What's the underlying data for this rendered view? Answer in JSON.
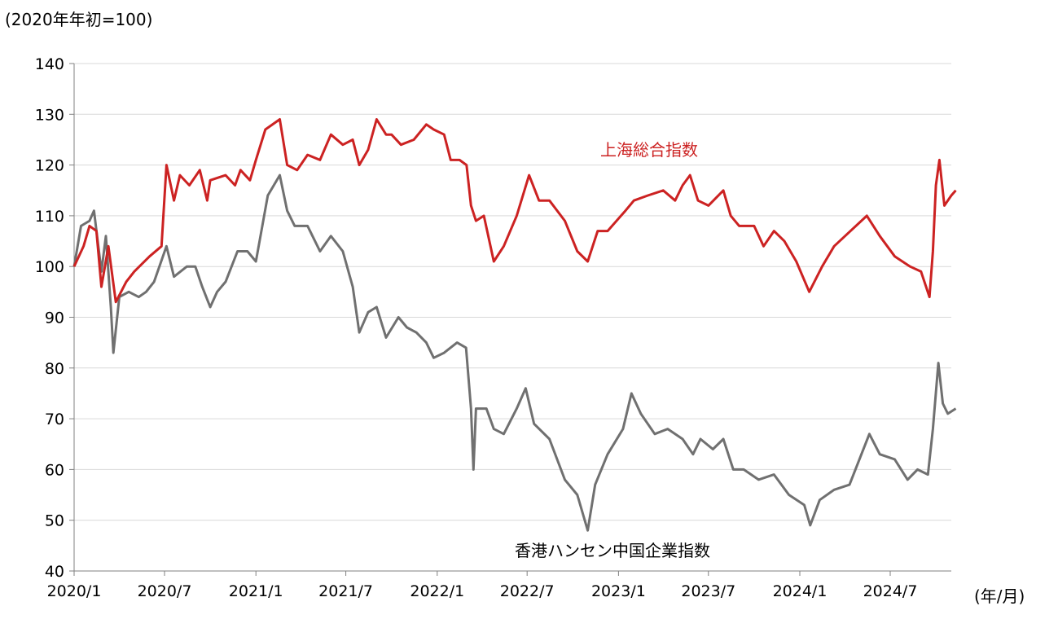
{
  "chart_data": {
    "type": "line",
    "title": "",
    "ylabel": "(2020年年初=100)",
    "xlabel": "(年/月)",
    "ylim": [
      40,
      140
    ],
    "yticks": [
      40,
      50,
      60,
      70,
      80,
      90,
      100,
      110,
      120,
      130,
      140
    ],
    "xlim": [
      "2020-01",
      "2024-11"
    ],
    "xticks": [
      {
        "label": "2020/1",
        "value": "2020-01"
      },
      {
        "label": "2020/7",
        "value": "2020-07"
      },
      {
        "label": "2021/1",
        "value": "2021-01"
      },
      {
        "label": "2021/7",
        "value": "2021-07"
      },
      {
        "label": "2022/1",
        "value": "2022-01"
      },
      {
        "label": "2022/7",
        "value": "2022-07"
      },
      {
        "label": "2023/1",
        "value": "2023-01"
      },
      {
        "label": "2023/7",
        "value": "2023-07"
      },
      {
        "label": "2024/1",
        "value": "2024-01"
      },
      {
        "label": "2024/7",
        "value": "2024-07"
      }
    ],
    "grid": "horizontal",
    "series": [
      {
        "name": "上海総合指数",
        "color": "#cc2222",
        "points": [
          [
            "2020-01",
            100
          ],
          [
            "2020-01-20",
            104
          ],
          [
            "2020-02",
            108
          ],
          [
            "2020-02-15",
            107
          ],
          [
            "2020-02-25",
            96
          ],
          [
            "2020-03-10",
            104
          ],
          [
            "2020-03-25",
            93
          ],
          [
            "2020-04-15",
            97
          ],
          [
            "2020-05",
            99
          ],
          [
            "2020-06",
            102
          ],
          [
            "2020-06-25",
            104
          ],
          [
            "2020-07-05",
            120
          ],
          [
            "2020-07-20",
            113
          ],
          [
            "2020-08",
            118
          ],
          [
            "2020-08-20",
            116
          ],
          [
            "2020-09-10",
            119
          ],
          [
            "2020-09-25",
            113
          ],
          [
            "2020-10",
            117
          ],
          [
            "2020-11",
            118
          ],
          [
            "2020-11-20",
            116
          ],
          [
            "2020-12",
            119
          ],
          [
            "2020-12-20",
            117
          ],
          [
            "2021-01",
            121
          ],
          [
            "2021-01-20",
            127
          ],
          [
            "2021-02-18",
            129
          ],
          [
            "2021-03-05",
            120
          ],
          [
            "2021-03-25",
            119
          ],
          [
            "2021-04-15",
            122
          ],
          [
            "2021-05-10",
            121
          ],
          [
            "2021-06",
            126
          ],
          [
            "2021-06-25",
            124
          ],
          [
            "2021-07-15",
            125
          ],
          [
            "2021-07-28",
            120
          ],
          [
            "2021-08-15",
            123
          ],
          [
            "2021-09",
            129
          ],
          [
            "2021-09-20",
            126
          ],
          [
            "2021-10",
            126
          ],
          [
            "2021-10-20",
            124
          ],
          [
            "2021-11-15",
            125
          ],
          [
            "2021-12-10",
            128
          ],
          [
            "2021-12-25",
            127
          ],
          [
            "2022-01-15",
            126
          ],
          [
            "2022-01-28",
            121
          ],
          [
            "2022-02-15",
            121
          ],
          [
            "2022-03-01",
            120
          ],
          [
            "2022-03-10",
            112
          ],
          [
            "2022-03-20",
            109
          ],
          [
            "2022-04-05",
            110
          ],
          [
            "2022-04-25",
            101
          ],
          [
            "2022-05-15",
            104
          ],
          [
            "2022-06-10",
            110
          ],
          [
            "2022-07-05",
            118
          ],
          [
            "2022-07-25",
            113
          ],
          [
            "2022-08-15",
            113
          ],
          [
            "2022-09-15",
            109
          ],
          [
            "2022-10-10",
            103
          ],
          [
            "2022-10-31",
            101
          ],
          [
            "2022-11-20",
            107
          ],
          [
            "2022-12-10",
            107
          ],
          [
            "2023-01-15",
            111
          ],
          [
            "2023-02",
            113
          ],
          [
            "2023-03",
            114
          ],
          [
            "2023-04",
            115
          ],
          [
            "2023-04-25",
            113
          ],
          [
            "2023-05-10",
            116
          ],
          [
            "2023-05-25",
            118
          ],
          [
            "2023-06-10",
            113
          ],
          [
            "2023-07",
            112
          ],
          [
            "2023-07-31",
            115
          ],
          [
            "2023-08-15",
            110
          ],
          [
            "2023-09",
            108
          ],
          [
            "2023-10",
            108
          ],
          [
            "2023-10-20",
            104
          ],
          [
            "2023-11-10",
            107
          ],
          [
            "2023-12-01",
            105
          ],
          [
            "2023-12-25",
            101
          ],
          [
            "2024-01-20",
            95
          ],
          [
            "2024-02-15",
            100
          ],
          [
            "2024-03-10",
            104
          ],
          [
            "2024-04",
            106
          ],
          [
            "2024-05-15",
            110
          ],
          [
            "2024-06-10",
            106
          ],
          [
            "2024-07-10",
            102
          ],
          [
            "2024-08-10",
            100
          ],
          [
            "2024-09-01",
            99
          ],
          [
            "2024-09-18",
            94
          ],
          [
            "2024-09-25",
            103
          ],
          [
            "2024-10-01",
            116
          ],
          [
            "2024-10-08",
            121
          ],
          [
            "2024-10-18",
            112
          ],
          [
            "2024-11-01",
            114
          ],
          [
            "2024-11-10",
            115
          ]
        ]
      },
      {
        "name": "香港ハンセン中国企業指数",
        "color": "#707070",
        "points": [
          [
            "2020-01",
            100
          ],
          [
            "2020-01-15",
            108
          ],
          [
            "2020-02-01",
            109
          ],
          [
            "2020-02-10",
            111
          ],
          [
            "2020-02-25",
            99
          ],
          [
            "2020-03-05",
            106
          ],
          [
            "2020-03-15",
            92
          ],
          [
            "2020-03-20",
            83
          ],
          [
            "2020-04-01",
            94
          ],
          [
            "2020-04-20",
            95
          ],
          [
            "2020-05-10",
            94
          ],
          [
            "2020-05-25",
            95
          ],
          [
            "2020-06-10",
            97
          ],
          [
            "2020-07-05",
            104
          ],
          [
            "2020-07-20",
            98
          ],
          [
            "2020-08-15",
            100
          ],
          [
            "2020-09-01",
            100
          ],
          [
            "2020-09-15",
            96
          ],
          [
            "2020-10-01",
            92
          ],
          [
            "2020-10-15",
            95
          ],
          [
            "2020-11-01",
            97
          ],
          [
            "2020-11-25",
            103
          ],
          [
            "2020-12-15",
            103
          ],
          [
            "2021-01-01",
            101
          ],
          [
            "2021-01-25",
            114
          ],
          [
            "2021-02-18",
            118
          ],
          [
            "2021-03-05",
            111
          ],
          [
            "2021-03-20",
            108
          ],
          [
            "2021-04-15",
            108
          ],
          [
            "2021-05-10",
            103
          ],
          [
            "2021-06-01",
            106
          ],
          [
            "2021-06-25",
            103
          ],
          [
            "2021-07-15",
            96
          ],
          [
            "2021-07-28",
            87
          ],
          [
            "2021-08-15",
            91
          ],
          [
            "2021-09-01",
            92
          ],
          [
            "2021-09-20",
            86
          ],
          [
            "2021-10-15",
            90
          ],
          [
            "2021-11-01",
            88
          ],
          [
            "2021-11-20",
            87
          ],
          [
            "2021-12-10",
            85
          ],
          [
            "2021-12-25",
            82
          ],
          [
            "2022-01-15",
            83
          ],
          [
            "2022-02-10",
            85
          ],
          [
            "2022-02-28",
            84
          ],
          [
            "2022-03-10",
            72
          ],
          [
            "2022-03-15",
            60
          ],
          [
            "2022-03-20",
            72
          ],
          [
            "2022-04-10",
            72
          ],
          [
            "2022-04-25",
            68
          ],
          [
            "2022-05-15",
            67
          ],
          [
            "2022-06-10",
            72
          ],
          [
            "2022-06-28",
            76
          ],
          [
            "2022-07-15",
            69
          ],
          [
            "2022-08-15",
            66
          ],
          [
            "2022-09-15",
            58
          ],
          [
            "2022-10-10",
            55
          ],
          [
            "2022-10-31",
            48
          ],
          [
            "2022-11-15",
            57
          ],
          [
            "2022-12-10",
            63
          ],
          [
            "2023-01-10",
            68
          ],
          [
            "2023-01-27",
            75
          ],
          [
            "2023-02-15",
            71
          ],
          [
            "2023-03-15",
            67
          ],
          [
            "2023-04-10",
            68
          ],
          [
            "2023-05-10",
            66
          ],
          [
            "2023-05-31",
            63
          ],
          [
            "2023-06-15",
            66
          ],
          [
            "2023-07-10",
            64
          ],
          [
            "2023-07-31",
            66
          ],
          [
            "2023-08-20",
            60
          ],
          [
            "2023-09-10",
            60
          ],
          [
            "2023-10-10",
            58
          ],
          [
            "2023-11-10",
            59
          ],
          [
            "2023-12-10",
            55
          ],
          [
            "2024-01-10",
            53
          ],
          [
            "2024-01-22",
            49
          ],
          [
            "2024-02-10",
            54
          ],
          [
            "2024-03-10",
            56
          ],
          [
            "2024-04-10",
            57
          ],
          [
            "2024-04-30",
            62
          ],
          [
            "2024-05-20",
            67
          ],
          [
            "2024-06-10",
            63
          ],
          [
            "2024-07-10",
            62
          ],
          [
            "2024-08-05",
            58
          ],
          [
            "2024-08-25",
            60
          ],
          [
            "2024-09-15",
            59
          ],
          [
            "2024-09-25",
            68
          ],
          [
            "2024-10-06",
            81
          ],
          [
            "2024-10-15",
            73
          ],
          [
            "2024-10-25",
            71
          ],
          [
            "2024-11-10",
            72
          ]
        ]
      }
    ]
  }
}
